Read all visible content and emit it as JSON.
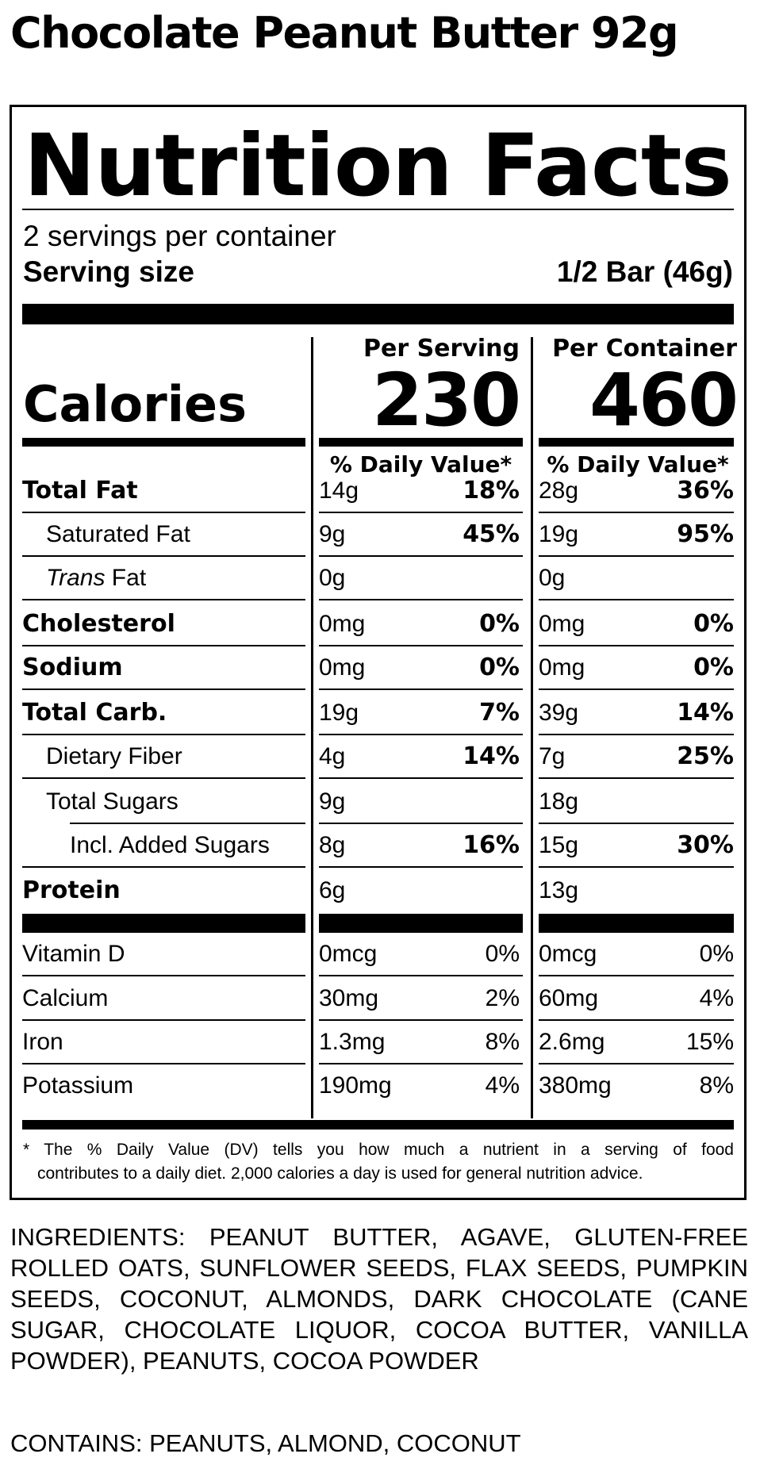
{
  "product_title": "Chocolate Peanut Butter 92g",
  "label": {
    "title": "Nutrition Facts",
    "servings_per_container": "2 servings per container",
    "serving_size_label": "Serving size",
    "serving_size_value": "1/2 Bar (46g)",
    "calories_label": "Calories",
    "col1_header": "Per Serving",
    "col2_header": "Per Container",
    "calories_per_serving": "230",
    "calories_per_container": "460",
    "dv_header": "% Daily Value*",
    "rows": [
      {
        "label": "Total Fat",
        "s_amt": "14g",
        "s_pct": "18%",
        "c_amt": "28g",
        "c_pct": "36%"
      },
      {
        "label": "Saturated Fat",
        "s_amt": "9g",
        "s_pct": "45%",
        "c_amt": "19g",
        "c_pct": "95%"
      },
      {
        "label_italic": "Trans",
        "label_rest": " Fat",
        "s_amt": "0g",
        "s_pct": "",
        "c_amt": "0g",
        "c_pct": ""
      },
      {
        "label": "Cholesterol",
        "s_amt": "0mg",
        "s_pct": "0%",
        "c_amt": "0mg",
        "c_pct": "0%"
      },
      {
        "label": "Sodium",
        "s_amt": "0mg",
        "s_pct": "0%",
        "c_amt": "0mg",
        "c_pct": "0%"
      },
      {
        "label": "Total Carb.",
        "s_amt": "19g",
        "s_pct": "7%",
        "c_amt": "39g",
        "c_pct": "14%"
      },
      {
        "label": "Dietary Fiber",
        "s_amt": "4g",
        "s_pct": "14%",
        "c_amt": "7g",
        "c_pct": "25%"
      },
      {
        "label": "Total Sugars",
        "s_amt": "9g",
        "s_pct": "",
        "c_amt": "18g",
        "c_pct": ""
      },
      {
        "label": "Incl. Added Sugars",
        "s_amt": "8g",
        "s_pct": "16%",
        "c_amt": "15g",
        "c_pct": "30%"
      },
      {
        "label": "Protein",
        "s_amt": "6g",
        "s_pct": "",
        "c_amt": "13g",
        "c_pct": ""
      }
    ],
    "vitamins": [
      {
        "label": "Vitamin D",
        "s_amt": "0mcg",
        "s_pct": "0%",
        "c_amt": "0mcg",
        "c_pct": "0%"
      },
      {
        "label": "Calcium",
        "s_amt": "30mg",
        "s_pct": "2%",
        "c_amt": "60mg",
        "c_pct": "4%"
      },
      {
        "label": "Iron",
        "s_amt": "1.3mg",
        "s_pct": "8%",
        "c_amt": "2.6mg",
        "c_pct": "15%"
      },
      {
        "label": "Potassium",
        "s_amt": "190mg",
        "s_pct": "4%",
        "c_amt": "380mg",
        "c_pct": "8%"
      }
    ],
    "footnote_line1": "* The % Daily Value (DV) tells you how much a nutrient in a serving of food",
    "footnote_line2": "contributes to a daily diet. 2,000 calories a day is used for general nutrition advice."
  },
  "ingredients": "INGREDIENTS: PEANUT BUTTER, AGAVE, GLUTEN-FREE ROLLED OATS, SUNFLOWER SEEDS, FLAX SEEDS, PUMPKIN SEEDS, COCONUT, ALMONDS, DARK CHOCOLATE (CANE SUGAR, CHOCOLATE LIQUOR, COCOA BUTTER, VANILLA POWDER), PEANUTS, COCOA POWDER",
  "contains": "CONTAINS: PEANUTS, ALMOND, COCONUT"
}
